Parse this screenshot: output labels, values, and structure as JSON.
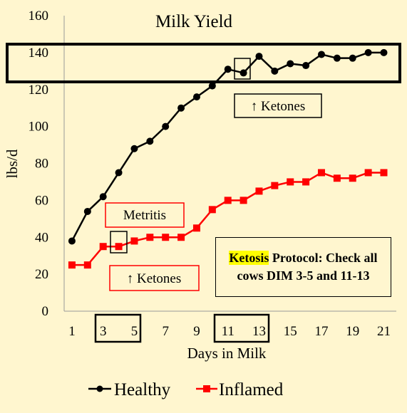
{
  "chart_data": {
    "type": "line",
    "title": "Milk Yield",
    "xlabel": "Days in Milk",
    "ylabel": "lbs/d",
    "xlim": [
      0.5,
      21.8
    ],
    "ylim": [
      0,
      160
    ],
    "x_ticks": [
      1,
      3,
      5,
      7,
      9,
      11,
      13,
      15,
      17,
      19,
      21
    ],
    "y_ticks": [
      0,
      20,
      40,
      60,
      80,
      100,
      120,
      140,
      160
    ],
    "grid": false,
    "legend_position": "bottom",
    "x": [
      1,
      2,
      3,
      4,
      5,
      6,
      7,
      8,
      9,
      10,
      11,
      12,
      13,
      14,
      15,
      16,
      17,
      18,
      19,
      20,
      21
    ],
    "series": [
      {
        "name": "Healthy",
        "color": "#000000",
        "marker": "circle",
        "values": [
          38,
          54,
          62,
          75,
          88,
          92,
          100,
          110,
          116,
          122,
          131,
          129,
          138,
          130,
          134,
          133,
          139,
          137,
          137,
          140,
          140
        ]
      },
      {
        "name": "Inflamed",
        "color": "#ff0000",
        "marker": "square",
        "values": [
          25,
          25,
          35,
          35,
          38,
          40,
          40,
          40,
          45,
          55,
          60,
          60,
          65,
          68,
          70,
          70,
          75,
          72,
          72,
          75,
          75
        ]
      }
    ],
    "annotations": {
      "healthy_ketones": "↑ Ketones",
      "inflamed_metritis": "Metritis",
      "inflamed_ketones": "↑ Ketones",
      "protocol_highlight": "Ketosis",
      "protocol_rest": " Protocol: Check all cows DIM 3-5 and 11-13"
    }
  }
}
